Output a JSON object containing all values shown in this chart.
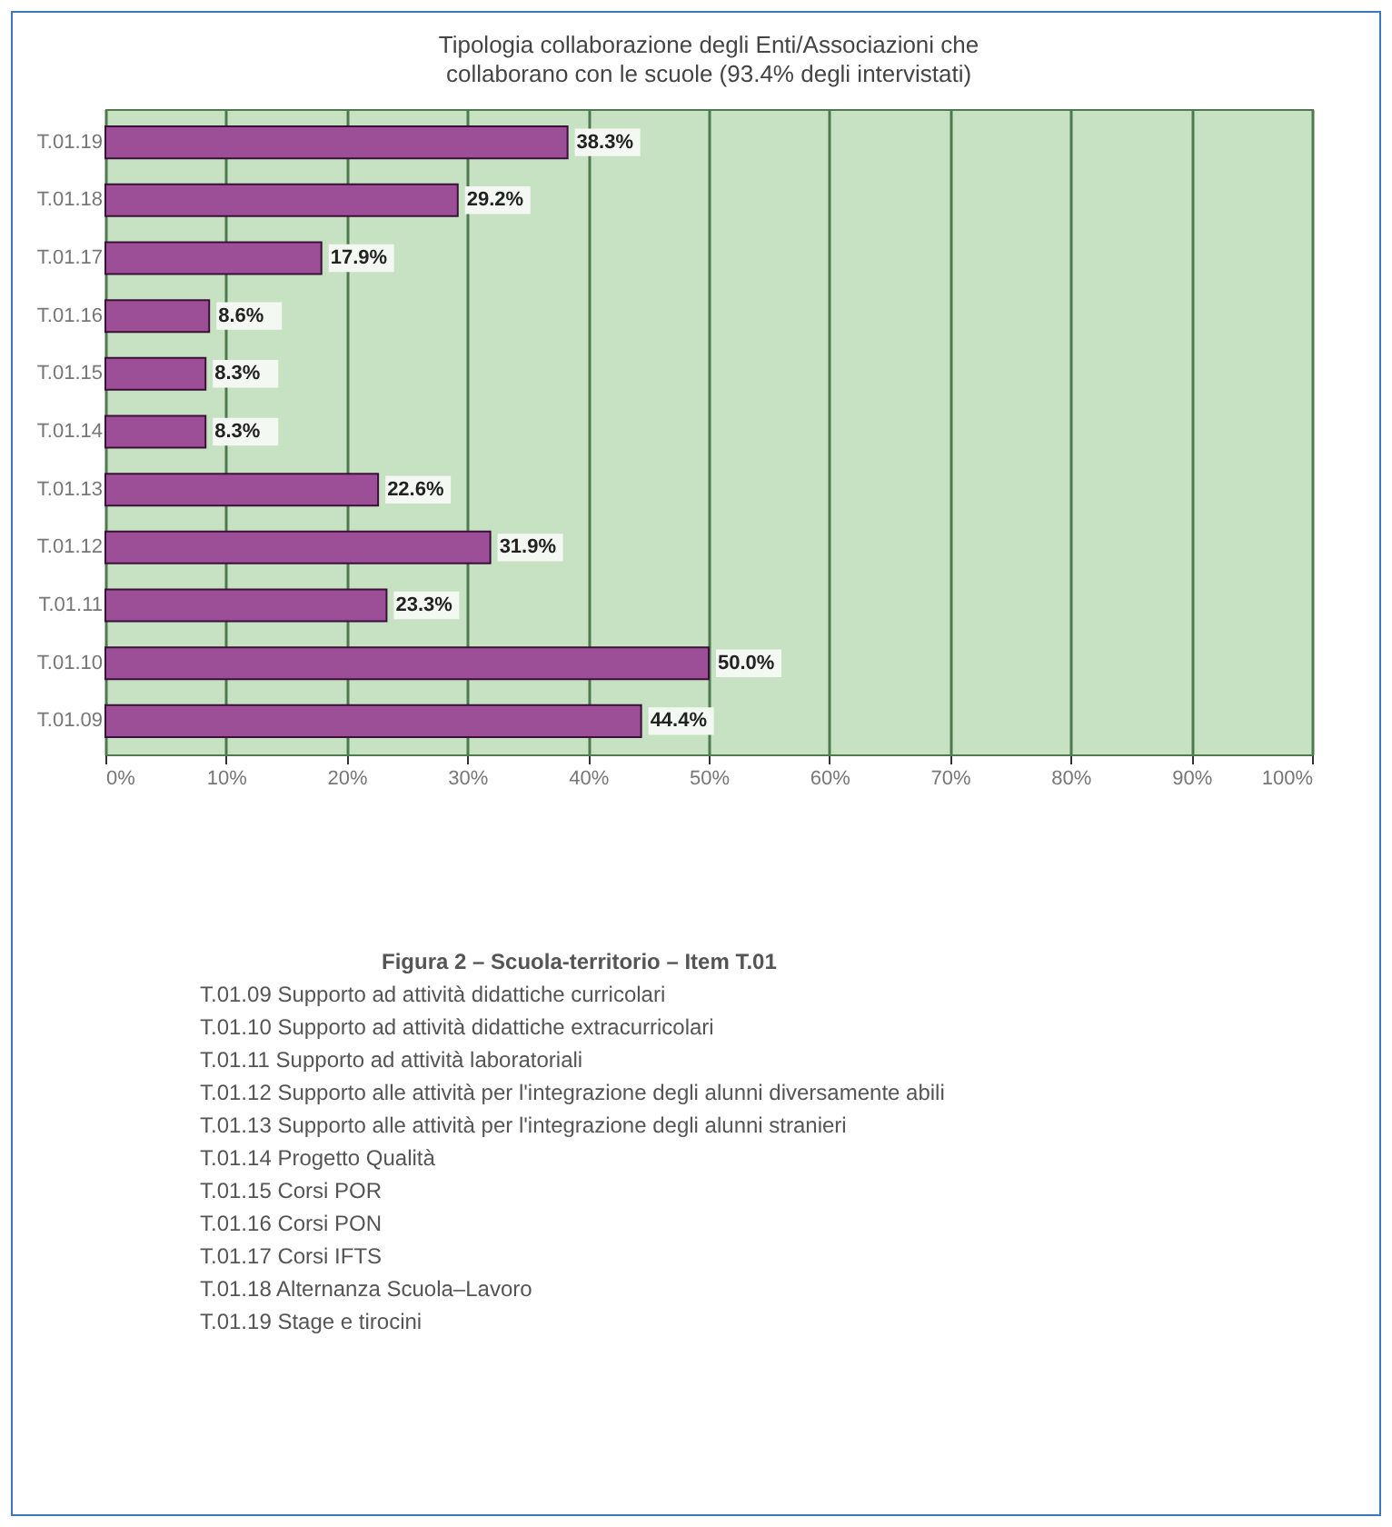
{
  "chart_data": {
    "type": "bar",
    "orientation": "horizontal",
    "title": "Tipologia collaborazione degli Enti/Associazioni che collaborano con le scuole (93.4% degli intervistati)",
    "categories": [
      "T.01.19",
      "T.01.18",
      "T.01.17",
      "T.01.16",
      "T.01.15",
      "T.01.14",
      "T.01.13",
      "T.01.12",
      "T.01.11",
      "T.01.10",
      "T.01.09"
    ],
    "values": [
      38.3,
      29.2,
      17.9,
      8.6,
      8.3,
      8.3,
      22.6,
      31.9,
      23.3,
      50.0,
      44.4
    ],
    "value_labels": [
      "38.3%",
      "29.2%",
      "17.9%",
      "8.6%",
      "8.3%",
      "8.3%",
      "22.6%",
      "31.9%",
      "23.3%",
      "50.0%",
      "44.4%"
    ],
    "color": "#9c4f96",
    "xlim": [
      0,
      100
    ],
    "xticks": [
      {
        "value": 0,
        "label": "0%"
      },
      {
        "value": 10,
        "label": "10%"
      },
      {
        "value": 20,
        "label": "20%"
      },
      {
        "value": 30,
        "label": "30%"
      },
      {
        "value": 40,
        "label": "40%"
      },
      {
        "value": 50,
        "label": "50%"
      },
      {
        "value": 60,
        "label": "60%"
      },
      {
        "value": 70,
        "label": "70%"
      },
      {
        "value": 80,
        "label": "80%"
      },
      {
        "value": 90,
        "label": "90%"
      },
      {
        "value": 100,
        "label": "100%"
      }
    ],
    "grid": "x",
    "annotations": [
      "Figura 2 – Scuola-territorio – Item T.01",
      "T.01.09 Supporto ad attività didattiche curricolari",
      "T.01.10 Supporto ad attività didattiche extracurricolari",
      "T.01.11 Supporto ad attività laboratoriali",
      "T.01.12 Supporto alle attività per l'integrazione degli alunni diversamente abili",
      "T.01.13 Supporto alle attività per l'integrazione degli alunni stranieri",
      "T.01.14 Progetto Qualità",
      "T.01.15 Corsi POR",
      "T.01.16 Corsi PON",
      "T.01.17 Corsi IFTS",
      "T.01.18 Alternanza Scuola–Lavoro",
      "T.01.19 Stage e tirocini"
    ]
  }
}
